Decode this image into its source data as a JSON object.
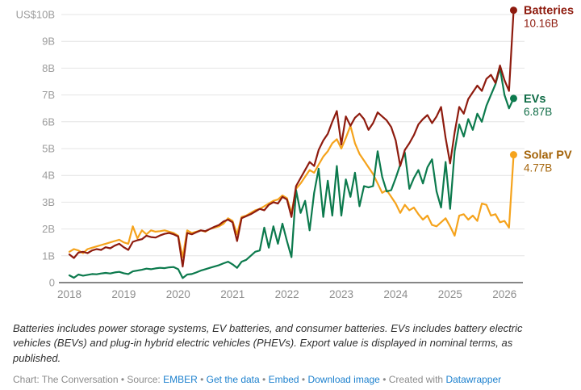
{
  "chart_data": {
    "type": "line",
    "title": "",
    "unit": "US$ billions (nominal)",
    "x_start": "2018-01",
    "x_frequency": "monthly",
    "x_ticks": [
      "2018",
      "2019",
      "2020",
      "2021",
      "2022",
      "2023",
      "2024",
      "2025",
      "2026"
    ],
    "y_ticks": [
      {
        "label": "US$10B",
        "value": 10
      },
      {
        "label": "9B",
        "value": 9
      },
      {
        "label": "8B",
        "value": 8
      },
      {
        "label": "7B",
        "value": 7
      },
      {
        "label": "6B",
        "value": 6
      },
      {
        "label": "5B",
        "value": 5
      },
      {
        "label": "4B",
        "value": 4
      },
      {
        "label": "3B",
        "value": 3
      },
      {
        "label": "2B",
        "value": 2
      },
      {
        "label": "1B",
        "value": 1
      },
      {
        "label": "0",
        "value": 0
      }
    ],
    "ylim": [
      0,
      10.4
    ],
    "grid": "horizontal",
    "legend_position": "end-of-line-labels",
    "series": [
      {
        "name": "Batteries",
        "end_label": "Batteries",
        "end_value_label": "10.16B",
        "end_value": 10.16,
        "color": "#8E1B0E",
        "label_color": "#8E1B0E",
        "values": [
          1.05,
          0.92,
          1.12,
          1.15,
          1.1,
          1.2,
          1.25,
          1.22,
          1.32,
          1.28,
          1.38,
          1.45,
          1.32,
          1.22,
          1.52,
          1.58,
          1.62,
          1.75,
          1.7,
          1.68,
          1.76,
          1.82,
          1.85,
          1.8,
          1.72,
          0.6,
          1.85,
          1.8,
          1.88,
          1.95,
          1.92,
          2.0,
          2.08,
          2.15,
          2.28,
          2.35,
          2.25,
          1.55,
          2.4,
          2.48,
          2.55,
          2.65,
          2.75,
          2.7,
          2.9,
          3.0,
          2.95,
          3.2,
          3.1,
          2.45,
          3.6,
          3.9,
          4.2,
          4.5,
          4.35,
          4.95,
          5.3,
          5.55,
          6.0,
          6.4,
          5.15,
          6.2,
          5.85,
          6.15,
          6.3,
          6.1,
          5.7,
          5.95,
          6.35,
          6.2,
          6.05,
          5.8,
          5.3,
          4.35,
          4.95,
          5.2,
          5.5,
          5.9,
          6.1,
          6.25,
          5.95,
          6.2,
          6.55,
          5.4,
          4.45,
          5.6,
          6.55,
          6.3,
          6.85,
          7.1,
          7.35,
          7.15,
          7.6,
          7.75,
          7.45,
          8.1,
          7.55,
          7.15,
          10.16
        ]
      },
      {
        "name": "EVs",
        "end_label": "EVs",
        "end_value_label": "6.87B",
        "end_value": 6.87,
        "color": "#0C7A4D",
        "label_color": "#0E6B45",
        "values": [
          0.27,
          0.18,
          0.3,
          0.26,
          0.29,
          0.32,
          0.31,
          0.34,
          0.36,
          0.34,
          0.38,
          0.4,
          0.35,
          0.32,
          0.42,
          0.45,
          0.48,
          0.52,
          0.5,
          0.53,
          0.55,
          0.54,
          0.57,
          0.58,
          0.5,
          0.17,
          0.3,
          0.32,
          0.38,
          0.45,
          0.5,
          0.55,
          0.6,
          0.65,
          0.72,
          0.78,
          0.68,
          0.55,
          0.78,
          0.85,
          1.0,
          1.15,
          1.2,
          2.05,
          1.3,
          2.1,
          1.45,
          2.2,
          1.55,
          0.95,
          3.45,
          2.6,
          3.05,
          1.95,
          3.35,
          4.25,
          2.45,
          3.8,
          2.5,
          4.35,
          2.5,
          3.85,
          3.2,
          4.1,
          2.85,
          3.6,
          3.55,
          3.6,
          4.9,
          3.95,
          3.4,
          3.45,
          3.9,
          4.4,
          4.85,
          3.5,
          3.9,
          4.2,
          3.7,
          4.3,
          4.6,
          3.4,
          2.8,
          4.5,
          2.75,
          4.9,
          5.9,
          5.45,
          6.1,
          5.7,
          6.3,
          6.0,
          6.6,
          7.0,
          7.4,
          8.0,
          7.0,
          6.5,
          6.87
        ]
      },
      {
        "name": "Solar PV",
        "end_label": "Solar PV",
        "end_value_label": "4.77B",
        "end_value": 4.77,
        "color": "#F5A31C",
        "label_color": "#A4640A",
        "values": [
          1.15,
          1.25,
          1.2,
          1.1,
          1.25,
          1.3,
          1.35,
          1.4,
          1.45,
          1.5,
          1.55,
          1.6,
          1.5,
          1.45,
          2.1,
          1.65,
          1.95,
          1.8,
          1.95,
          1.9,
          1.92,
          1.95,
          1.9,
          1.85,
          1.75,
          0.95,
          1.95,
          1.85,
          1.9,
          1.95,
          1.9,
          2.0,
          2.05,
          2.1,
          2.2,
          2.4,
          2.3,
          1.8,
          2.45,
          2.5,
          2.6,
          2.7,
          2.75,
          2.85,
          2.95,
          3.05,
          3.1,
          3.25,
          3.15,
          2.6,
          3.5,
          3.7,
          3.95,
          4.2,
          4.1,
          4.4,
          4.7,
          4.9,
          5.2,
          5.35,
          5.0,
          5.4,
          5.85,
          5.2,
          4.8,
          4.55,
          4.3,
          4.05,
          3.7,
          3.35,
          3.45,
          3.2,
          2.95,
          2.6,
          2.9,
          2.7,
          2.8,
          2.55,
          2.35,
          2.5,
          2.15,
          2.1,
          2.25,
          2.4,
          2.1,
          1.75,
          2.5,
          2.55,
          2.35,
          2.5,
          2.3,
          2.95,
          2.9,
          2.5,
          2.55,
          2.25,
          2.3,
          2.05,
          4.77
        ]
      }
    ]
  },
  "footer": {
    "notes": "Batteries includes power storage systems, EV batteries, and consumer batteries. EVs includes battery electric vehicles (BEVs) and plug-in hybrid electric vehicles (PHEVs). Export value is displayed in nominal terms, as published.",
    "credit": {
      "segments": [
        {
          "text": "Chart: The Conversation • Source: ",
          "link": false
        },
        {
          "text": "EMBER",
          "link": true,
          "name": "source-link"
        },
        {
          "text": " • ",
          "link": false
        },
        {
          "text": "Get the data",
          "link": true,
          "name": "get-the-data-link"
        },
        {
          "text": " • ",
          "link": false
        },
        {
          "text": "Embed",
          "link": true,
          "name": "embed-link"
        },
        {
          "text": " • ",
          "link": false
        },
        {
          "text": "Download image",
          "link": true,
          "name": "download-image-link"
        },
        {
          "text": " • Created with ",
          "link": false
        },
        {
          "text": "Datawrapper",
          "link": true,
          "name": "datawrapper-link"
        }
      ]
    }
  },
  "colors": {
    "gridline": "#e4e4e4",
    "baseline": "#3f3f3f",
    "y_tick_text": "#9c9c9c",
    "x_tick_text": "#8d8d8d",
    "link_blue": "#1d81ce"
  }
}
